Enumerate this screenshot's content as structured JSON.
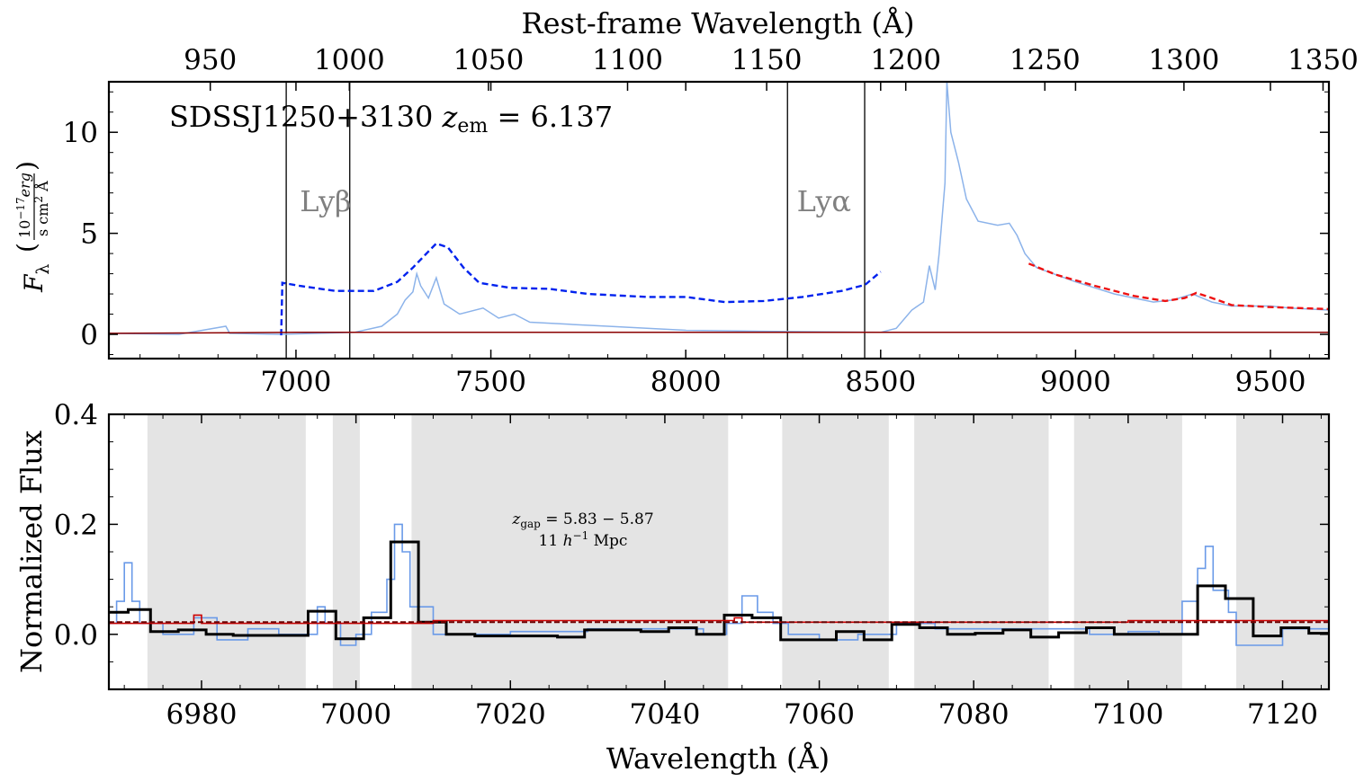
{
  "chart_data": [
    {
      "type": "line",
      "panel": "top",
      "top_axis": {
        "label": "Rest-frame Wavelength (Å)",
        "ticks": [
          950,
          1000,
          1050,
          1100,
          1150,
          1200,
          1250,
          1300,
          1350
        ],
        "tick_labels": [
          "950",
          "1000",
          "1050",
          "1100",
          "1150",
          "1200",
          "1250",
          "1300",
          "1350"
        ]
      },
      "x": {
        "label": "",
        "lim": [
          6520,
          9650
        ],
        "ticks": [
          7000,
          7500,
          8000,
          8500,
          9000,
          9500
        ],
        "tick_labels": [
          "7000",
          "7500",
          "8000",
          "8500",
          "9000",
          "9500"
        ]
      },
      "y": {
        "label_main": "F",
        "label_sub": "λ",
        "label_unit_num": "10",
        "label_unit_exp": "−17",
        "label_unit_num2": "erg",
        "label_unit_den": "s cm",
        "label_unit_den_exp": "2",
        "label_unit_den2": " Å",
        "lim": [
          -1.2,
          12.5
        ],
        "ticks": [
          0,
          5,
          10
        ],
        "tick_labels": [
          "0",
          "5",
          "10"
        ]
      },
      "annotation": {
        "object": "SDSSJ1250+3130 ",
        "z_symbol": "z",
        "z_sub": "em",
        "z_value": " = 6.137"
      },
      "vertical_lines": [
        6975,
        7138,
        8261,
        8459
      ],
      "line_labels": [
        {
          "text": "Lyβ",
          "x": 7010,
          "y": 6.1
        },
        {
          "text": "Lyα",
          "x": 8285,
          "y": 6.1
        }
      ],
      "series": [
        {
          "color": "#8cb3ea",
          "style": "solid",
          "points": [
            [
              6520,
              0.05
            ],
            [
              6700,
              0.0
            ],
            [
              6820,
              0.4
            ],
            [
              6830,
              0.05
            ],
            [
              6960,
              0.0
            ],
            [
              7150,
              0.1
            ],
            [
              7220,
              0.4
            ],
            [
              7260,
              1.0
            ],
            [
              7280,
              1.7
            ],
            [
              7300,
              2.1
            ],
            [
              7310,
              3.0
            ],
            [
              7320,
              2.4
            ],
            [
              7340,
              1.8
            ],
            [
              7360,
              2.8
            ],
            [
              7380,
              1.5
            ],
            [
              7420,
              1.0
            ],
            [
              7480,
              1.3
            ],
            [
              7520,
              0.8
            ],
            [
              7560,
              1.0
            ],
            [
              7600,
              0.6
            ],
            [
              7700,
              0.5
            ],
            [
              7800,
              0.4
            ],
            [
              7900,
              0.3
            ],
            [
              8000,
              0.2
            ],
            [
              8200,
              0.15
            ],
            [
              8500,
              0.1
            ],
            [
              8540,
              0.3
            ],
            [
              8580,
              1.2
            ],
            [
              8610,
              1.6
            ],
            [
              8625,
              3.4
            ],
            [
              8640,
              2.2
            ],
            [
              8650,
              4.0
            ],
            [
              8665,
              7.5
            ],
            [
              8670,
              12.5
            ],
            [
              8680,
              10.0
            ],
            [
              8700,
              8.5
            ],
            [
              8720,
              6.7
            ],
            [
              8750,
              5.6
            ],
            [
              8800,
              5.4
            ],
            [
              8830,
              5.5
            ],
            [
              8850,
              4.9
            ],
            [
              8870,
              4.0
            ],
            [
              8900,
              3.3
            ],
            [
              9000,
              2.6
            ],
            [
              9100,
              2.0
            ],
            [
              9200,
              1.6
            ],
            [
              9250,
              1.7
            ],
            [
              9300,
              2.0
            ],
            [
              9350,
              1.6
            ],
            [
              9400,
              1.4
            ],
            [
              9500,
              1.4
            ],
            [
              9550,
              1.3
            ],
            [
              9650,
              1.2
            ]
          ]
        },
        {
          "color": "#0022ee",
          "style": "dashed",
          "points": [
            [
              6962,
              -0.05
            ],
            [
              6965,
              2.55
            ],
            [
              7010,
              2.4
            ],
            [
              7100,
              2.15
            ],
            [
              7200,
              2.15
            ],
            [
              7260,
              2.6
            ],
            [
              7300,
              3.3
            ],
            [
              7340,
              4.1
            ],
            [
              7360,
              4.5
            ],
            [
              7390,
              4.3
            ],
            [
              7430,
              3.3
            ],
            [
              7470,
              2.55
            ],
            [
              7550,
              2.3
            ],
            [
              7650,
              2.25
            ],
            [
              7750,
              2.0
            ],
            [
              7900,
              1.85
            ],
            [
              8000,
              1.85
            ],
            [
              8100,
              1.6
            ],
            [
              8200,
              1.65
            ],
            [
              8300,
              1.85
            ],
            [
              8400,
              2.15
            ],
            [
              8460,
              2.45
            ],
            [
              8500,
              3.1
            ]
          ]
        },
        {
          "color": "#ee1111",
          "style": "dashed",
          "points": [
            [
              8880,
              3.5
            ],
            [
              8950,
              2.95
            ],
            [
              9050,
              2.4
            ],
            [
              9150,
              1.9
            ],
            [
              9230,
              1.65
            ],
            [
              9280,
              1.8
            ],
            [
              9310,
              2.05
            ],
            [
              9350,
              1.8
            ],
            [
              9400,
              1.45
            ],
            [
              9500,
              1.35
            ],
            [
              9650,
              1.25
            ]
          ]
        },
        {
          "color": "#8b0000",
          "style": "solid",
          "points": [
            [
              6520,
              0.05
            ],
            [
              7000,
              0.1
            ],
            [
              8000,
              0.1
            ],
            [
              9000,
              0.1
            ],
            [
              9650,
              0.1
            ]
          ]
        }
      ]
    },
    {
      "type": "line",
      "panel": "bottom",
      "x": {
        "label": "Wavelength (Å)",
        "lim": [
          6968,
          7126
        ],
        "ticks": [
          6980,
          7000,
          7020,
          7040,
          7060,
          7080,
          7100,
          7120
        ],
        "tick_labels": [
          "6980",
          "7000",
          "7020",
          "7040",
          "7060",
          "7080",
          "7100",
          "7120"
        ]
      },
      "y": {
        "label": "Normalized Flux",
        "lim": [
          -0.1,
          0.4
        ],
        "ticks": [
          0.0,
          0.2,
          0.4
        ],
        "tick_labels": [
          "0.0",
          "0.2",
          "0.4"
        ]
      },
      "shaded_regions": [
        [
          6973,
          6993.5
        ],
        [
          6997,
          7000.5
        ],
        [
          7007.2,
          7048.2
        ],
        [
          7055.2,
          7069
        ],
        [
          7072.3,
          7089.7
        ],
        [
          7093,
          7107
        ],
        [
          7114,
          7126
        ]
      ],
      "gap_label": {
        "line1_symbol": "z",
        "line1_sub": "gap",
        "line1_value": " = 5.83 − 5.87",
        "line2_value": "11 ",
        "line2_h": "h",
        "line2_exp": "−1",
        "line2_unit": " Mpc"
      },
      "series": [
        {
          "color": "#6a9ae8",
          "style": "step",
          "points": [
            [
              6968,
              0.02
            ],
            [
              6969,
              0.06
            ],
            [
              6970,
              0.13
            ],
            [
              6971,
              0.06
            ],
            [
              6972,
              0.02
            ],
            [
              6975,
              0.0
            ],
            [
              6979,
              0.03
            ],
            [
              6982,
              -0.01
            ],
            [
              6986,
              0.01
            ],
            [
              6990,
              0.0
            ],
            [
              6993,
              0.0
            ],
            [
              6995,
              0.05
            ],
            [
              6996,
              0.02
            ],
            [
              6998,
              -0.02
            ],
            [
              7000,
              0.0
            ],
            [
              7002,
              0.04
            ],
            [
              7004,
              0.1
            ],
            [
              7005,
              0.2
            ],
            [
              7006,
              0.15
            ],
            [
              7007,
              0.05
            ],
            [
              7010,
              0.0
            ],
            [
              7020,
              0.005
            ],
            [
              7030,
              0.01
            ],
            [
              7045,
              0.0
            ],
            [
              7048,
              0.02
            ],
            [
              7050,
              0.07
            ],
            [
              7052,
              0.04
            ],
            [
              7054,
              0.02
            ],
            [
              7056,
              0.0
            ],
            [
              7060,
              -0.01
            ],
            [
              7065,
              0.0
            ],
            [
              7070,
              0.02
            ],
            [
              7075,
              0.01
            ],
            [
              7085,
              0.01
            ],
            [
              7095,
              0.0
            ],
            [
              7100,
              0.005
            ],
            [
              7104,
              0.0
            ],
            [
              7106,
              0.0
            ],
            [
              7107,
              0.06
            ],
            [
              7109,
              0.12
            ],
            [
              7110,
              0.16
            ],
            [
              7111,
              0.08
            ],
            [
              7113,
              0.04
            ],
            [
              7114,
              -0.02
            ],
            [
              7120,
              0.01
            ],
            [
              7126,
              0.0
            ]
          ]
        },
        {
          "color": "#000000",
          "style": "step-binned",
          "edges": [
            6968,
            6970.5,
            6973.4,
            6977,
            6980.6,
            6984.1,
            6990,
            6993.8,
            6997.4,
            7001,
            7004.5,
            7008.1,
            7011.7,
            7015.4,
            7019,
            7022.5,
            7026.1,
            7029.6,
            7033.3,
            7036.9,
            7040.5,
            7044.1,
            7047.7,
            7051.3,
            7055,
            7058.5,
            7062.2,
            7065.8,
            7069.4,
            7073,
            7076.6,
            7080.2,
            7083.8,
            7087.4,
            7091,
            7094.6,
            7098.2,
            7101.8,
            7105.4,
            7109,
            7112.6,
            7116.2,
            7119.8,
            7123.4,
            7126
          ],
          "values": [
            0.04,
            0.045,
            0.005,
            0.008,
            0.0,
            -0.002,
            -0.002,
            0.042,
            -0.008,
            0.03,
            0.168,
            0.022,
            0.0,
            -0.003,
            -0.003,
            -0.003,
            -0.005,
            0.008,
            0.008,
            0.005,
            0.012,
            0.0,
            0.035,
            0.03,
            -0.01,
            -0.01,
            0.005,
            -0.01,
            0.018,
            0.012,
            0.0,
            0.002,
            0.008,
            -0.005,
            0.003,
            0.012,
            0.0,
            0.0,
            0.0,
            0.088,
            0.065,
            -0.003,
            0.012,
            0.002
          ]
        },
        {
          "color": "#cc0000",
          "style": "step",
          "points": [
            [
              6968,
              0.02
            ],
            [
              6979,
              0.035
            ],
            [
              6980,
              0.02
            ],
            [
              7000,
              0.02
            ],
            [
              7010,
              0.025
            ],
            [
              7049,
              0.03
            ],
            [
              7050,
              0.022
            ],
            [
              7060,
              0.022
            ],
            [
              7080,
              0.022
            ],
            [
              7100,
              0.025
            ],
            [
              7126,
              0.025
            ]
          ]
        },
        {
          "color": "#6b0000",
          "style": "dashed",
          "points": [
            [
              6968,
              0.022
            ],
            [
              7126,
              0.022
            ]
          ]
        }
      ]
    }
  ]
}
